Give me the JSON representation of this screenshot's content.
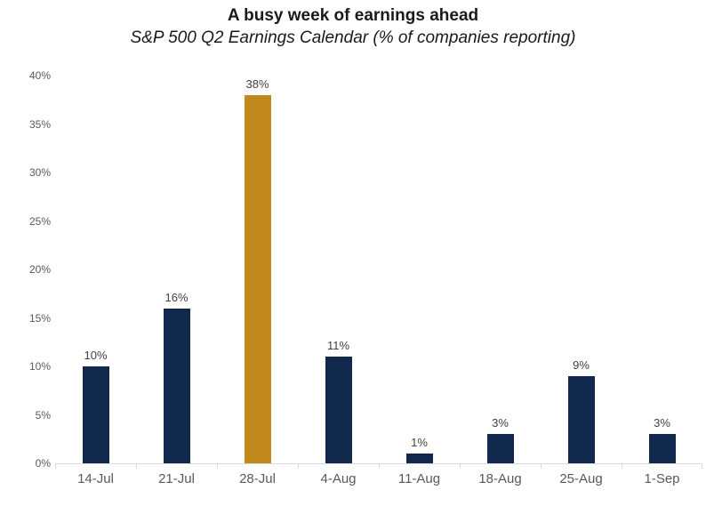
{
  "chart_data": {
    "type": "bar",
    "title": "A busy week of earnings ahead",
    "subtitle": "S&P 500 Q2 Earnings Calendar (% of companies reporting)",
    "categories": [
      "14-Jul",
      "21-Jul",
      "28-Jul",
      "4-Aug",
      "11-Aug",
      "18-Aug",
      "25-Aug",
      "1-Sep"
    ],
    "values": [
      10,
      16,
      38,
      11,
      1,
      3,
      9,
      3
    ],
    "data_labels": [
      "10%",
      "16%",
      "38%",
      "11%",
      "1%",
      "3%",
      "9%",
      "3%"
    ],
    "highlight_index": 2,
    "highlighted_category": "28-Jul",
    "xlabel": "",
    "ylabel": "",
    "ylim": [
      0,
      40
    ],
    "ytick_step": 5,
    "ytick_labels": [
      "0%",
      "5%",
      "10%",
      "15%",
      "20%",
      "25%",
      "30%",
      "35%",
      "40%"
    ],
    "grid": false,
    "legend": false,
    "colors": {
      "bar_default": "#12294e",
      "bar_highlight": "#c28a1d",
      "axis_line": "#d9d9d9",
      "axis_text": "#595959",
      "data_label_text": "#404040",
      "title_text": "#1a1a1a"
    }
  }
}
